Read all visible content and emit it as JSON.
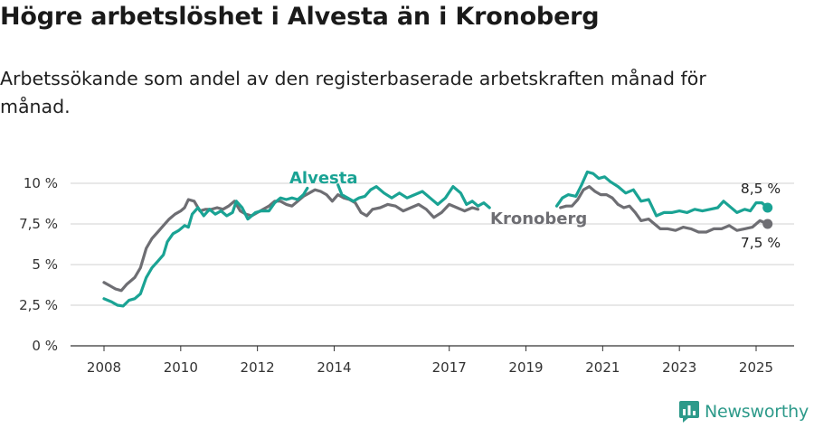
{
  "header": {
    "title": "Högre arbetslöshet i Alvesta än i Kronoberg",
    "subtitle": "Arbetssökande som andel av den registerbaserade arbetskraften månad för månad."
  },
  "brand": {
    "name": "Newsworthy",
    "color": "#2d9a8a"
  },
  "chart_data": {
    "type": "line",
    "title": "Högre arbetslöshet i Alvesta än i Kronoberg",
    "ylim": [
      0,
      10
    ],
    "y_ticks": [
      {
        "value": 0,
        "label": "0 %"
      },
      {
        "value": 2.5,
        "label": "2,5 %"
      },
      {
        "value": 5,
        "label": "5 %"
      },
      {
        "value": 7.5,
        "label": "7,5 %"
      },
      {
        "value": 10,
        "label": "10 %"
      }
    ],
    "x_ticks": [
      {
        "value": 2008,
        "label": "2008"
      },
      {
        "value": 2010,
        "label": "2010"
      },
      {
        "value": 2012,
        "label": "2012"
      },
      {
        "value": 2014,
        "label": "2014"
      },
      {
        "value": 2017,
        "label": "2017"
      },
      {
        "value": 2019,
        "label": "2019"
      },
      {
        "value": 2021,
        "label": "2021"
      },
      {
        "value": 2023,
        "label": "2023"
      },
      {
        "value": 2025,
        "label": "2025"
      }
    ],
    "grid": true,
    "series": [
      {
        "name": "Alvesta",
        "color": "#1aa394",
        "end_label": "8,5 %",
        "segments": [
          [
            [
              2008.0,
              2.9
            ],
            [
              2008.2,
              2.7
            ],
            [
              2008.35,
              2.5
            ],
            [
              2008.5,
              2.45
            ],
            [
              2008.65,
              2.8
            ],
            [
              2008.8,
              2.9
            ],
            [
              2008.95,
              3.2
            ],
            [
              2009.1,
              4.2
            ],
            [
              2009.25,
              4.8
            ],
            [
              2009.4,
              5.2
            ],
            [
              2009.55,
              5.6
            ],
            [
              2009.65,
              6.4
            ],
            [
              2009.8,
              6.9
            ],
            [
              2009.95,
              7.1
            ],
            [
              2010.1,
              7.4
            ],
            [
              2010.2,
              7.3
            ],
            [
              2010.3,
              8.1
            ],
            [
              2010.45,
              8.5
            ],
            [
              2010.6,
              8.0
            ],
            [
              2010.75,
              8.4
            ],
            [
              2010.9,
              8.1
            ],
            [
              2011.05,
              8.3
            ],
            [
              2011.2,
              8.0
            ],
            [
              2011.35,
              8.2
            ],
            [
              2011.45,
              8.9
            ],
            [
              2011.6,
              8.5
            ],
            [
              2011.75,
              7.8
            ],
            [
              2011.95,
              8.2
            ],
            [
              2012.1,
              8.3
            ],
            [
              2012.3,
              8.3
            ],
            [
              2012.45,
              8.8
            ],
            [
              2012.6,
              9.1
            ],
            [
              2012.75,
              9.0
            ],
            [
              2012.9,
              9.1
            ],
            [
              2013.05,
              9.0
            ],
            [
              2013.2,
              9.3
            ],
            [
              2013.3,
              9.7
            ]
          ],
          [
            [
              2014.1,
              9.9
            ],
            [
              2014.2,
              9.3
            ],
            [
              2014.35,
              9.1
            ],
            [
              2014.5,
              8.9
            ],
            [
              2014.65,
              9.1
            ],
            [
              2014.8,
              9.2
            ],
            [
              2014.95,
              9.6
            ],
            [
              2015.1,
              9.8
            ],
            [
              2015.3,
              9.4
            ],
            [
              2015.5,
              9.1
            ],
            [
              2015.7,
              9.4
            ],
            [
              2015.9,
              9.1
            ],
            [
              2016.1,
              9.3
            ],
            [
              2016.3,
              9.5
            ],
            [
              2016.5,
              9.1
            ],
            [
              2016.7,
              8.7
            ],
            [
              2016.9,
              9.1
            ],
            [
              2017.1,
              9.8
            ],
            [
              2017.3,
              9.4
            ],
            [
              2017.45,
              8.7
            ],
            [
              2017.6,
              8.9
            ],
            [
              2017.75,
              8.6
            ],
            [
              2017.9,
              8.8
            ],
            [
              2018.05,
              8.5
            ]
          ],
          [
            [
              2019.8,
              8.6
            ],
            [
              2019.95,
              9.1
            ],
            [
              2020.1,
              9.3
            ],
            [
              2020.3,
              9.2
            ],
            [
              2020.45,
              9.9
            ],
            [
              2020.6,
              10.7
            ],
            [
              2020.75,
              10.6
            ],
            [
              2020.9,
              10.3
            ],
            [
              2021.05,
              10.4
            ],
            [
              2021.2,
              10.1
            ],
            [
              2021.4,
              9.8
            ],
            [
              2021.6,
              9.4
            ],
            [
              2021.8,
              9.6
            ],
            [
              2022.0,
              8.9
            ],
            [
              2022.2,
              9.0
            ],
            [
              2022.4,
              8.0
            ],
            [
              2022.6,
              8.2
            ],
            [
              2022.8,
              8.2
            ],
            [
              2023.0,
              8.3
            ],
            [
              2023.2,
              8.2
            ],
            [
              2023.4,
              8.4
            ],
            [
              2023.6,
              8.3
            ],
            [
              2023.8,
              8.4
            ],
            [
              2024.0,
              8.5
            ],
            [
              2024.15,
              8.9
            ],
            [
              2024.3,
              8.6
            ],
            [
              2024.5,
              8.2
            ],
            [
              2024.7,
              8.4
            ],
            [
              2024.85,
              8.3
            ],
            [
              2025.0,
              8.8
            ],
            [
              2025.15,
              8.8
            ],
            [
              2025.3,
              8.5
            ]
          ]
        ]
      },
      {
        "name": "Kronoberg",
        "color": "#6e6e73",
        "end_label": "7,5 %",
        "segments": [
          [
            [
              2008.0,
              3.9
            ],
            [
              2008.15,
              3.7
            ],
            [
              2008.3,
              3.5
            ],
            [
              2008.45,
              3.4
            ],
            [
              2008.6,
              3.8
            ],
            [
              2008.8,
              4.2
            ],
            [
              2008.95,
              4.8
            ],
            [
              2009.1,
              6.0
            ],
            [
              2009.25,
              6.6
            ],
            [
              2009.4,
              7.0
            ],
            [
              2009.55,
              7.4
            ],
            [
              2009.7,
              7.8
            ],
            [
              2009.85,
              8.1
            ],
            [
              2010.0,
              8.3
            ],
            [
              2010.1,
              8.5
            ],
            [
              2010.2,
              9.0
            ],
            [
              2010.35,
              8.9
            ],
            [
              2010.5,
              8.3
            ],
            [
              2010.65,
              8.4
            ],
            [
              2010.8,
              8.4
            ],
            [
              2010.95,
              8.5
            ],
            [
              2011.1,
              8.4
            ],
            [
              2011.25,
              8.6
            ],
            [
              2011.4,
              8.9
            ],
            [
              2011.55,
              8.3
            ],
            [
              2011.7,
              8.1
            ],
            [
              2011.85,
              8.0
            ],
            [
              2012.0,
              8.2
            ],
            [
              2012.15,
              8.4
            ],
            [
              2012.3,
              8.6
            ],
            [
              2012.45,
              8.9
            ],
            [
              2012.6,
              8.9
            ],
            [
              2012.75,
              8.7
            ],
            [
              2012.9,
              8.6
            ],
            [
              2013.05,
              8.9
            ],
            [
              2013.2,
              9.2
            ],
            [
              2013.35,
              9.4
            ],
            [
              2013.5,
              9.6
            ],
            [
              2013.65,
              9.5
            ],
            [
              2013.8,
              9.3
            ],
            [
              2013.95,
              8.9
            ],
            [
              2014.1,
              9.3
            ],
            [
              2014.25,
              9.1
            ],
            [
              2014.4,
              9.0
            ],
            [
              2014.55,
              8.8
            ],
            [
              2014.7,
              8.2
            ],
            [
              2014.85,
              8.0
            ],
            [
              2015.0,
              8.4
            ],
            [
              2015.2,
              8.5
            ],
            [
              2015.4,
              8.7
            ],
            [
              2015.6,
              8.6
            ],
            [
              2015.8,
              8.3
            ],
            [
              2016.0,
              8.5
            ],
            [
              2016.2,
              8.7
            ],
            [
              2016.4,
              8.4
            ],
            [
              2016.6,
              7.9
            ],
            [
              2016.8,
              8.2
            ],
            [
              2017.0,
              8.7
            ],
            [
              2017.2,
              8.5
            ],
            [
              2017.4,
              8.3
            ],
            [
              2017.6,
              8.5
            ],
            [
              2017.75,
              8.4
            ]
          ],
          [
            [
              2019.9,
              8.5
            ],
            [
              2020.05,
              8.6
            ],
            [
              2020.2,
              8.6
            ],
            [
              2020.35,
              9.0
            ],
            [
              2020.5,
              9.6
            ],
            [
              2020.65,
              9.8
            ],
            [
              2020.8,
              9.5
            ],
            [
              2020.95,
              9.3
            ],
            [
              2021.1,
              9.3
            ],
            [
              2021.25,
              9.1
            ],
            [
              2021.4,
              8.7
            ],
            [
              2021.55,
              8.5
            ],
            [
              2021.7,
              8.6
            ],
            [
              2021.85,
              8.2
            ],
            [
              2022.0,
              7.7
            ],
            [
              2022.2,
              7.8
            ],
            [
              2022.35,
              7.5
            ],
            [
              2022.5,
              7.2
            ],
            [
              2022.7,
              7.2
            ],
            [
              2022.9,
              7.1
            ],
            [
              2023.1,
              7.3
            ],
            [
              2023.3,
              7.2
            ],
            [
              2023.5,
              7.0
            ],
            [
              2023.7,
              7.0
            ],
            [
              2023.9,
              7.2
            ],
            [
              2024.1,
              7.2
            ],
            [
              2024.3,
              7.4
            ],
            [
              2024.5,
              7.1
            ],
            [
              2024.7,
              7.2
            ],
            [
              2024.9,
              7.3
            ],
            [
              2025.1,
              7.7
            ],
            [
              2025.3,
              7.5
            ]
          ]
        ]
      }
    ]
  }
}
